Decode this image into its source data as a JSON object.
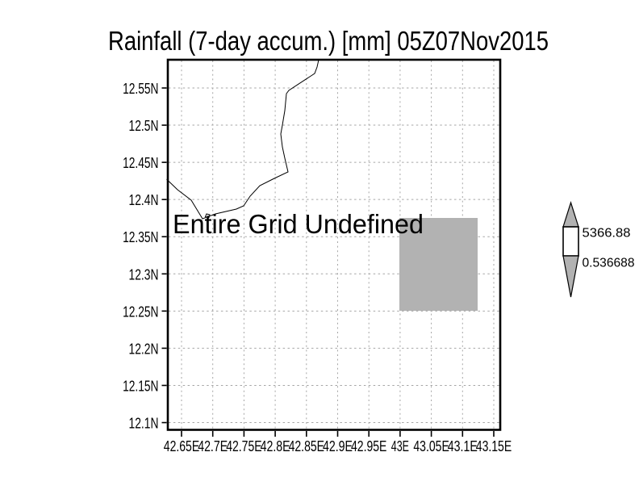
{
  "title": "Rainfall (7-day accum.) [mm] 05Z07Nov2015",
  "map": {
    "annotation": "Entire Grid Undefined",
    "features": [
      "coastline"
    ]
  },
  "colorbar": {
    "top_label": "5366.88",
    "bottom_label": "0.536688"
  },
  "colors": {
    "mask_gray": "#b2b2b2",
    "annotation_gray": "#7d7d7d",
    "grid_gray": "#a6a6a6",
    "line_black": "#000000"
  },
  "chart_data": {
    "type": "heatmap",
    "title": "Rainfall (7-day accum.) [mm] 05Z07Nov2015",
    "status": "Entire Grid Undefined",
    "data_values": "undefined over entire grid (no shaded rainfall values rendered)",
    "x_axis": {
      "tick_labels": [
        "42.65E",
        "42.7E",
        "42.75E",
        "42.8E",
        "42.85E",
        "42.9E",
        "42.95E",
        "43E",
        "43.05E",
        "43.1E",
        "43.15E"
      ],
      "approx_range": [
        42.63,
        43.16
      ]
    },
    "y_axis": {
      "tick_labels": [
        "12.55N",
        "12.5N",
        "12.45N",
        "12.4N",
        "12.35N",
        "12.3N",
        "12.25N",
        "12.2N",
        "12.15N",
        "12.1N"
      ],
      "approx_range": [
        12.09,
        12.59
      ]
    },
    "grid": true,
    "colorbar": {
      "position": "right",
      "max": 5366.88,
      "min": 0.536688,
      "labels": [
        "5366.88",
        "0.536688"
      ]
    },
    "masked_cell_approx": {
      "lon_range": [
        43.0,
        43.125
      ],
      "lat_range": [
        12.25,
        12.375
      ]
    },
    "map_features": [
      "coastline"
    ]
  }
}
